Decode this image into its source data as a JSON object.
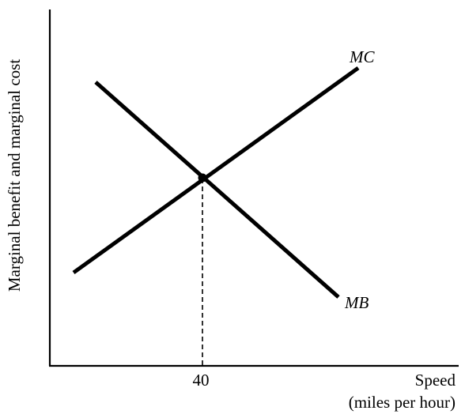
{
  "diagram": {
    "y_axis_label": "Marginal benefit and marginal cost",
    "x_axis_label_line1": "Speed",
    "x_axis_label_line2": "(miles per hour)",
    "x_tick_label": "40",
    "curves": {
      "mc_label": "MC",
      "mb_label": "MB"
    },
    "equilibrium_speed": 40
  }
}
